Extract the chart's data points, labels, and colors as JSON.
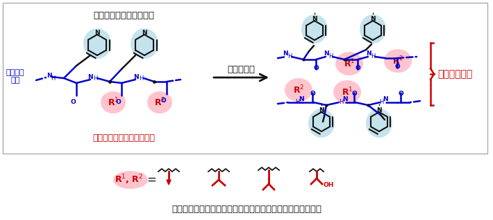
{
  "fig_width": 7.1,
  "fig_height": 3.18,
  "dpi": 100,
  "bg_color": "#ffffff",
  "blue": "#0000cc",
  "red": "#cc0000",
  "black": "#111111",
  "cyan_bg": "#add8e6",
  "pink_bg": "#ffb6c1",
  "text_top": "金属イオンと結合する側",
  "text_peptide1": "ペプチド",
  "text_peptide2": "主鎖",
  "text_red_bottom": "立体ジッパーを形成する側",
  "text_metal": "金属イオン",
  "text_zipper": "立体ジッパー",
  "text_caption": "さまざまなアミノ酸側鎖を導入し、立体ジッパー構造を比較"
}
